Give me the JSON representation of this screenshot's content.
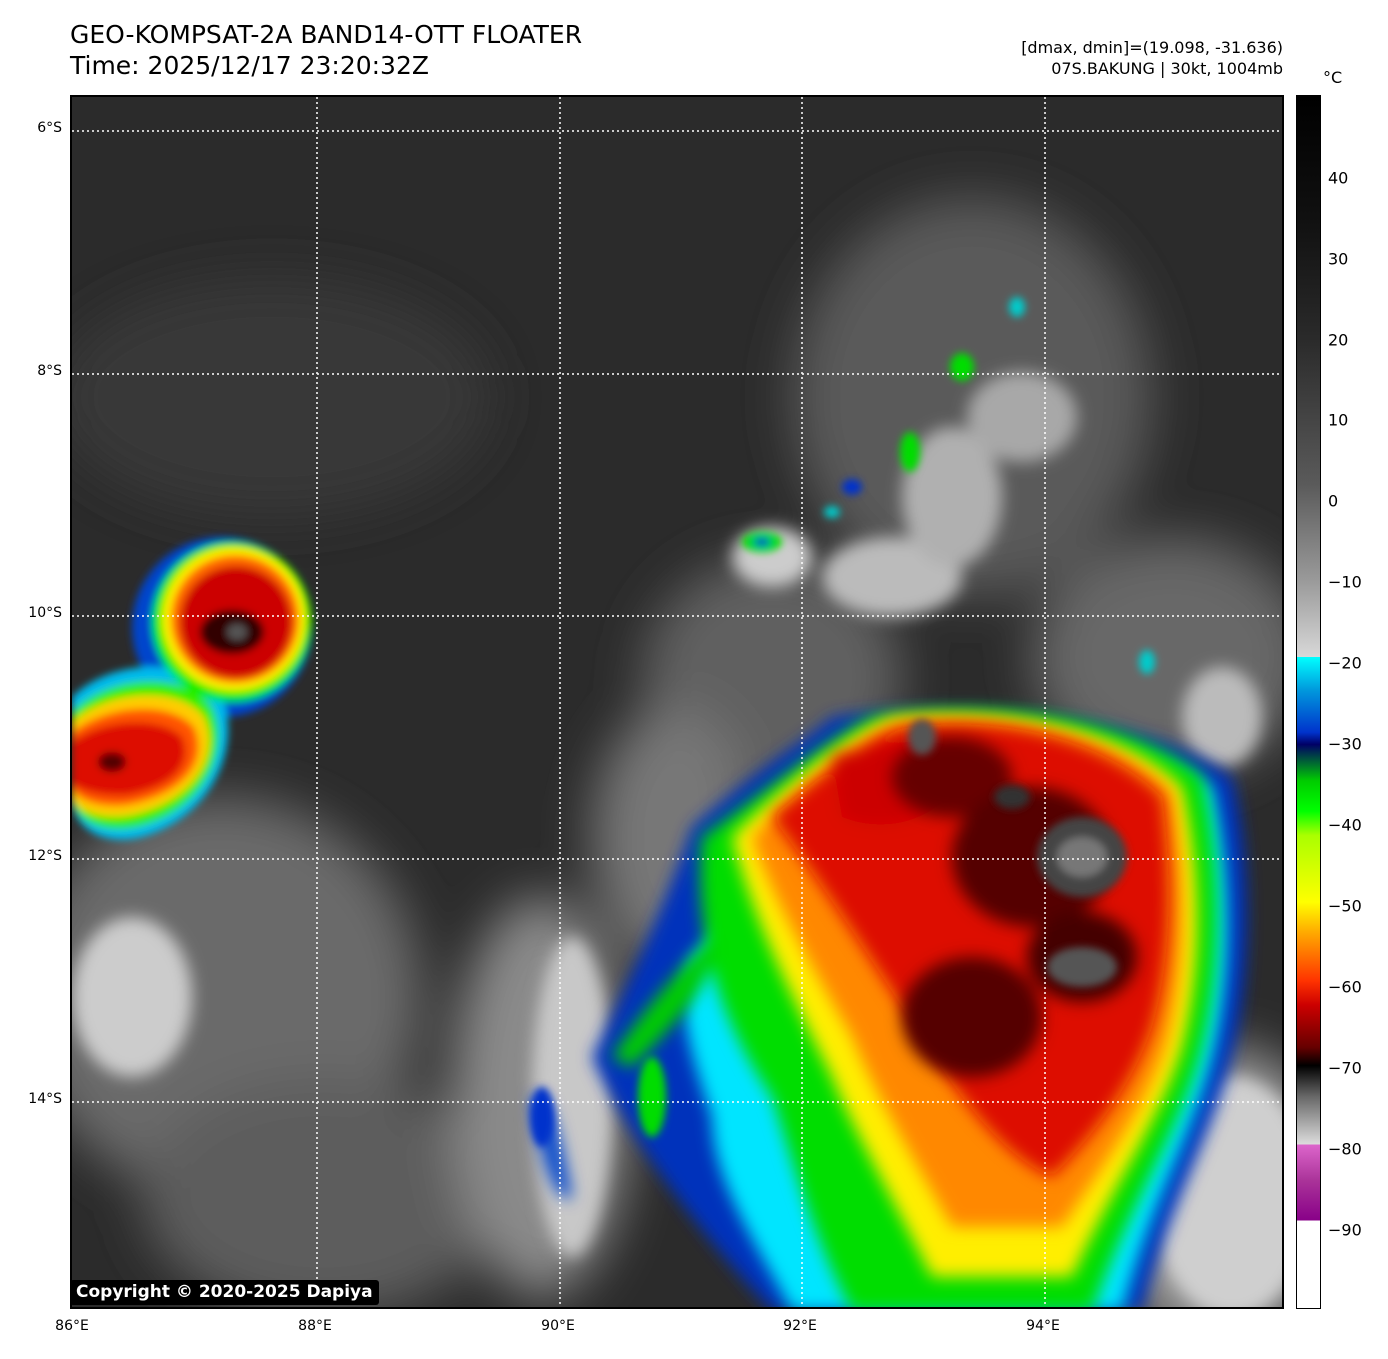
{
  "header": {
    "title": "GEO-KOMPSAT-2A BAND14-OTT FLOATER",
    "time": "Time: 2025/12/17 23:20:32Z",
    "range": "[dmax, dmin]=(19.098, -31.636)",
    "storm": "07S.BAKUNG | 30kt, 1004mb"
  },
  "map": {
    "latitude_labels": [
      {
        "label": "6°S",
        "value": -6
      },
      {
        "label": "8°S",
        "value": -8
      },
      {
        "label": "10°S",
        "value": -10
      },
      {
        "label": "12°S",
        "value": -12
      },
      {
        "label": "14°S",
        "value": -14
      }
    ],
    "longitude_labels": [
      {
        "label": "86°E",
        "value": 86
      },
      {
        "label": "88°E",
        "value": 88
      },
      {
        "label": "90°E",
        "value": 90
      },
      {
        "label": "92°E",
        "value": 92
      },
      {
        "label": "94°E",
        "value": 94
      }
    ],
    "extent": {
      "lon_min": 86,
      "lon_max": 96,
      "lat_max": -5.73,
      "lat_min": -15.73
    },
    "grid": "dotted-white",
    "copyright": "Copyright © 2020-2025 Dapiya"
  },
  "colorbar": {
    "unit": "°C",
    "ticks": [
      40,
      30,
      20,
      10,
      0,
      -10,
      -20,
      -30,
      -40,
      -50,
      -60,
      -70,
      -80,
      -90
    ],
    "range": [
      -100,
      50
    ]
  },
  "colors": {
    "background_cloudfree": "#2a2a2a",
    "cold_cloud_red": "#cc0000",
    "cold_cloud_yellow": "#ffff00",
    "cold_cloud_green": "#00ee00",
    "cold_cloud_blue": "#0033cc",
    "cold_cloud_cyan": "#00e5ff",
    "coldest_black": "#111111"
  }
}
